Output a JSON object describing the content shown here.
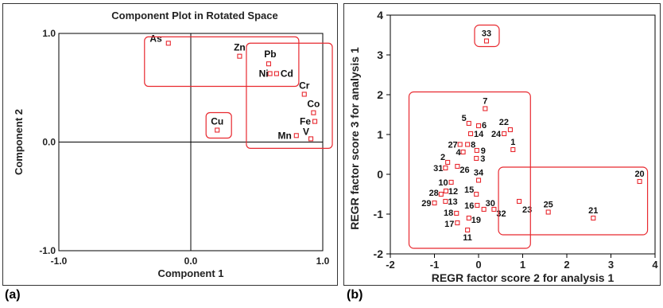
{
  "panel_a_label": "(a)",
  "panel_b_label": "(b)",
  "chart_data": [
    {
      "type": "scatter",
      "title": "Component Plot in Rotated Space",
      "xlabel": "Component 1",
      "ylabel": "Component 2",
      "xlim": [
        -1.0,
        1.0
      ],
      "ylim": [
        -1.0,
        1.0
      ],
      "xticks": [
        "-1.0",
        "0.0",
        "1.0"
      ],
      "yticks": [
        "-1.0",
        "0.0",
        "1.0"
      ],
      "grid": false,
      "marker_color": "#e8282f",
      "group_box_color": "#e8282f",
      "points": [
        {
          "label": "As",
          "x": -0.17,
          "y": 0.91
        },
        {
          "label": "Zn",
          "x": 0.37,
          "y": 0.79
        },
        {
          "label": "Pb",
          "x": 0.59,
          "y": 0.72
        },
        {
          "label": "Ni",
          "x": 0.6,
          "y": 0.63
        },
        {
          "label": "Cd",
          "x": 0.65,
          "y": 0.63
        },
        {
          "label": "Cr",
          "x": 0.86,
          "y": 0.44
        },
        {
          "label": "Co",
          "x": 0.93,
          "y": 0.27
        },
        {
          "label": "Fe",
          "x": 0.94,
          "y": 0.19
        },
        {
          "label": "Mn",
          "x": 0.8,
          "y": 0.06
        },
        {
          "label": "V",
          "x": 0.91,
          "y": 0.03
        },
        {
          "label": "Cu",
          "x": 0.2,
          "y": 0.11
        }
      ],
      "groups": [
        {
          "members": [
            "As",
            "Zn",
            "Pb",
            "Ni",
            "Cd"
          ]
        },
        {
          "members": [
            "Pb",
            "Ni",
            "Cd",
            "Cr",
            "Co",
            "Fe",
            "Mn",
            "V"
          ]
        },
        {
          "members": [
            "Cu"
          ]
        }
      ]
    },
    {
      "type": "scatter",
      "title": "",
      "xlabel": "REGR factor score 2 for analysis 1",
      "ylabel": "REGR factor score 3 for analysis 1",
      "xlim": [
        -2,
        4
      ],
      "ylim": [
        -2,
        4
      ],
      "xticks": [
        "-2",
        "-1",
        "0",
        "1",
        "2",
        "3",
        "4"
      ],
      "yticks": [
        "-2",
        "-1",
        "0",
        "1",
        "2",
        "3",
        "4"
      ],
      "grid": false,
      "marker_color": "#e8282f",
      "group_box_color": "#e8282f",
      "points": [
        {
          "label": "33",
          "x": 0.18,
          "y": 3.35
        },
        {
          "label": "7",
          "x": 0.15,
          "y": 1.65
        },
        {
          "label": "5",
          "x": -0.22,
          "y": 1.28
        },
        {
          "label": "6",
          "x": 0.0,
          "y": 1.22
        },
        {
          "label": "22",
          "x": 0.72,
          "y": 1.12
        },
        {
          "label": "24",
          "x": 0.58,
          "y": 1.02
        },
        {
          "label": "14",
          "x": -0.18,
          "y": 1.02
        },
        {
          "label": "1",
          "x": 0.78,
          "y": 0.62
        },
        {
          "label": "27",
          "x": -0.42,
          "y": 0.75
        },
        {
          "label": "8",
          "x": -0.25,
          "y": 0.75
        },
        {
          "label": "9",
          "x": -0.04,
          "y": 0.6
        },
        {
          "label": "4",
          "x": -0.35,
          "y": 0.56
        },
        {
          "label": "3",
          "x": -0.05,
          "y": 0.4
        },
        {
          "label": "2",
          "x": -0.7,
          "y": 0.3
        },
        {
          "label": "31",
          "x": -0.75,
          "y": 0.16
        },
        {
          "label": "26",
          "x": -0.48,
          "y": 0.2
        },
        {
          "label": "34",
          "x": 0.0,
          "y": -0.15
        },
        {
          "label": "10",
          "x": -0.62,
          "y": -0.2
        },
        {
          "label": "12",
          "x": -0.74,
          "y": -0.42
        },
        {
          "label": "15",
          "x": -0.05,
          "y": -0.5
        },
        {
          "label": "28",
          "x": -0.85,
          "y": -0.5
        },
        {
          "label": "29",
          "x": -1.0,
          "y": -0.72
        },
        {
          "label": "13",
          "x": -0.75,
          "y": -0.68
        },
        {
          "label": "16",
          "x": -0.03,
          "y": -0.78
        },
        {
          "label": "30",
          "x": 0.12,
          "y": -0.88
        },
        {
          "label": "32",
          "x": 0.35,
          "y": -0.88
        },
        {
          "label": "18",
          "x": -0.5,
          "y": -0.98
        },
        {
          "label": "19",
          "x": -0.22,
          "y": -1.1
        },
        {
          "label": "17",
          "x": -0.48,
          "y": -1.22
        },
        {
          "label": "11",
          "x": -0.25,
          "y": -1.4
        },
        {
          "label": "23",
          "x": 0.92,
          "y": -0.68
        },
        {
          "label": "25",
          "x": 1.58,
          "y": -0.95
        },
        {
          "label": "21",
          "x": 2.6,
          "y": -1.1
        },
        {
          "label": "20",
          "x": 3.65,
          "y": -0.18
        }
      ],
      "groups": [
        {
          "members": [
            "33"
          ]
        },
        {
          "members": [
            "1",
            "2",
            "3",
            "4",
            "5",
            "6",
            "7",
            "8",
            "9",
            "10",
            "11",
            "12",
            "13",
            "14",
            "15",
            "16",
            "17",
            "18",
            "19",
            "22",
            "24",
            "26",
            "27",
            "28",
            "29",
            "30",
            "31",
            "32",
            "34"
          ]
        },
        {
          "members": [
            "20",
            "21",
            "23",
            "25"
          ]
        }
      ]
    }
  ]
}
